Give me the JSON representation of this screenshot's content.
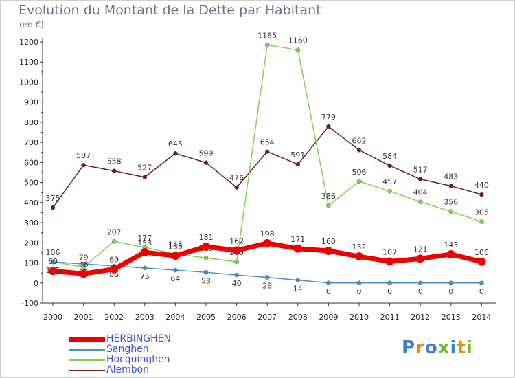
{
  "chart_data": {
    "type": "line",
    "title": "Evolution du Montant de la Dette par Habitant",
    "subtitle": "(en €)",
    "xlabel": "",
    "ylabel": "",
    "x": [
      "2000",
      "2001",
      "2002",
      "2003",
      "2004",
      "2005",
      "2006",
      "2007",
      "2008",
      "2009",
      "2010",
      "2011",
      "2012",
      "2013",
      "2014"
    ],
    "ylim": [
      -100,
      1200
    ],
    "yticks": [
      -100,
      0,
      100,
      200,
      300,
      400,
      500,
      600,
      700,
      800,
      900,
      1000,
      1100,
      1200
    ],
    "grid": false,
    "legend_position": "bottom-left",
    "series": [
      {
        "name": "HERBINGHEN",
        "color": "#ee0000",
        "values": [
          60,
          46,
          69,
          153,
          135,
          181,
          162,
          198,
          171,
          160,
          132,
          107,
          121,
          143,
          106
        ],
        "labels": [
          "60",
          "46",
          "69",
          "153",
          "135",
          "181",
          "162",
          "198",
          "171",
          "160",
          "132",
          "107",
          "121",
          "143",
          "106"
        ]
      },
      {
        "name": "Sanghen",
        "color": "#4a8fd0",
        "values": [
          105,
          95,
          85,
          75,
          64,
          53,
          40,
          28,
          14,
          0,
          0,
          0,
          0,
          0,
          0
        ],
        "labels": [
          "105",
          "95",
          "85",
          "75",
          "64",
          "53",
          "40",
          "28",
          "14",
          "0",
          "0",
          "0",
          "0",
          "0",
          "0"
        ]
      },
      {
        "name": "Hocquinghen",
        "color": "#7fd44c",
        "values": [
          106,
          79,
          207,
          177,
          145,
          125,
          105,
          1185,
          1160,
          386,
          506,
          457,
          404,
          356,
          305
        ],
        "labels": [
          "106",
          "79",
          "207",
          "177",
          "145",
          "125",
          "105",
          "1185",
          "1160",
          "386",
          "506",
          "457",
          "404",
          "356",
          "305"
        ]
      },
      {
        "name": "Alembon",
        "color": "#6b1b24",
        "values": [
          375,
          587,
          558,
          527,
          645,
          599,
          476,
          654,
          591,
          779,
          662,
          584,
          517,
          483,
          440
        ],
        "labels": [
          "375",
          "587",
          "558",
          "527",
          "645",
          "599",
          "476",
          "654",
          "591",
          "779",
          "662",
          "584",
          "517",
          "483",
          "440"
        ]
      }
    ]
  },
  "brand": {
    "letters": [
      "P",
      "r",
      "o",
      "x",
      "i",
      "t",
      "i"
    ],
    "colors": [
      "#3a7fd0",
      "#f08a00",
      "#3a7fd0",
      "#66bb22",
      "#3a7fd0",
      "#f08a00",
      "#66bb22"
    ]
  }
}
